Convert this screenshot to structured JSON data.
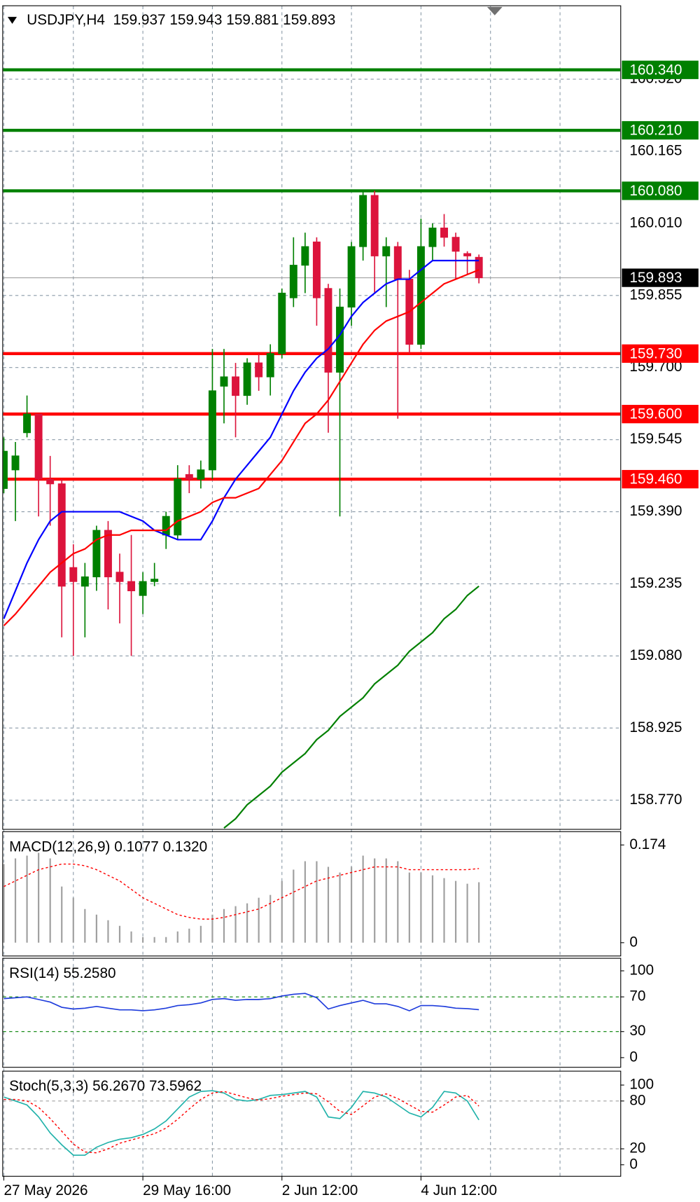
{
  "chart_data": [
    {
      "type": "candlestick",
      "title": "USDJPY,H4  159.937 159.943 159.881 159.893",
      "categories": [
        "27 May 2026",
        null,
        null,
        null,
        null,
        null,
        null,
        null,
        null,
        null,
        null,
        null,
        "29 May 16:00",
        null,
        null,
        null,
        null,
        null,
        null,
        null,
        null,
        null,
        null,
        null,
        "2 Jun 12:00",
        null,
        null,
        null,
        null,
        null,
        null,
        null,
        null,
        null,
        null,
        null,
        "4 Jun 12:00",
        null,
        null,
        null,
        null,
        null
      ],
      "open": [
        159.44,
        159.48,
        159.56,
        159.6,
        159.46,
        159.45,
        159.27,
        159.23,
        159.25,
        159.35,
        159.26,
        159.24,
        159.21,
        159.24,
        159.34,
        159.34,
        159.47,
        159.46,
        159.48,
        159.66,
        159.68,
        159.64,
        159.71,
        159.68,
        159.73,
        159.85,
        159.92,
        159.97,
        159.87,
        159.69,
        159.83,
        159.96,
        160.07,
        159.94,
        159.96,
        159.89,
        159.75,
        159.96,
        160.0,
        159.98,
        159.945,
        159.937
      ],
      "high": [
        159.55,
        159.54,
        159.64,
        159.6,
        159.51,
        159.46,
        159.32,
        159.28,
        159.36,
        159.37,
        159.3,
        159.34,
        159.26,
        159.28,
        159.39,
        159.49,
        159.49,
        159.5,
        159.74,
        159.74,
        159.71,
        159.72,
        159.73,
        159.75,
        159.87,
        159.98,
        159.99,
        159.98,
        159.88,
        159.87,
        159.97,
        160.08,
        160.08,
        159.98,
        159.97,
        159.91,
        160.02,
        160.01,
        160.03,
        159.99,
        159.95,
        159.943
      ],
      "low": [
        159.43,
        159.37,
        159.55,
        159.38,
        159.36,
        159.12,
        159.08,
        159.12,
        159.22,
        159.18,
        159.15,
        159.08,
        159.17,
        159.23,
        159.31,
        159.33,
        159.43,
        159.44,
        159.46,
        159.58,
        159.55,
        159.62,
        159.65,
        159.64,
        159.72,
        159.83,
        159.86,
        159.79,
        159.56,
        159.38,
        159.79,
        159.93,
        159.86,
        159.83,
        159.59,
        159.73,
        159.74,
        159.93,
        159.96,
        159.89,
        159.9,
        159.881
      ],
      "close": [
        159.52,
        159.51,
        159.6,
        159.46,
        159.45,
        159.23,
        159.24,
        159.25,
        159.35,
        159.25,
        159.24,
        159.22,
        159.24,
        159.245,
        159.38,
        159.46,
        159.46,
        159.48,
        159.65,
        159.68,
        159.64,
        159.71,
        159.68,
        159.73,
        159.86,
        159.92,
        159.96,
        159.85,
        159.69,
        159.83,
        159.96,
        160.07,
        159.94,
        159.96,
        159.89,
        159.75,
        159.96,
        160.0,
        159.98,
        159.95,
        159.94,
        159.893
      ],
      "up_color": "#008000",
      "down_color": "#dc143c",
      "lines": [
        {
          "color": "#0000ff",
          "values": [
            159.16,
            159.22,
            159.28,
            159.33,
            159.37,
            159.39,
            159.39,
            159.39,
            159.39,
            159.39,
            159.39,
            159.38,
            159.37,
            159.35,
            159.34,
            159.33,
            159.33,
            159.33,
            159.37,
            159.42,
            159.46,
            159.49,
            159.52,
            159.55,
            159.6,
            159.65,
            159.69,
            159.72,
            159.74,
            159.77,
            159.81,
            159.84,
            159.86,
            159.88,
            159.89,
            159.89,
            159.91,
            159.93,
            159.93,
            159.93,
            159.93,
            159.93
          ]
        },
        {
          "color": "#ff0000",
          "values": [
            159.145,
            159.17,
            159.2,
            159.23,
            159.26,
            159.28,
            159.3,
            159.31,
            159.33,
            159.34,
            159.34,
            159.35,
            159.35,
            159.35,
            159.35,
            159.37,
            159.38,
            159.39,
            159.41,
            159.42,
            159.42,
            159.43,
            159.44,
            159.47,
            159.5,
            159.54,
            159.58,
            159.6,
            159.63,
            159.67,
            159.71,
            159.75,
            159.78,
            159.8,
            159.81,
            159.82,
            159.84,
            159.86,
            159.88,
            159.89,
            159.9,
            159.91
          ]
        },
        {
          "color": "#008000",
          "values": [
            null,
            null,
            null,
            null,
            null,
            null,
            null,
            null,
            null,
            null,
            null,
            null,
            null,
            null,
            null,
            null,
            null,
            null,
            null,
            158.71,
            158.73,
            158.76,
            158.78,
            158.8,
            158.83,
            158.85,
            158.87,
            158.9,
            158.92,
            158.95,
            158.97,
            158.99,
            159.02,
            159.04,
            159.06,
            159.09,
            159.11,
            159.13,
            159.16,
            159.18,
            159.21,
            159.23
          ]
        }
      ],
      "levels": [
        {
          "value": 160.34,
          "label": "160.340",
          "color": "#008000"
        },
        {
          "value": 160.21,
          "label": "160.210",
          "color": "#008000"
        },
        {
          "value": 160.08,
          "label": "160.080",
          "color": "#008000"
        },
        {
          "value": 159.73,
          "label": "159.730",
          "color": "#ff0000"
        },
        {
          "value": 159.6,
          "label": "159.600",
          "color": "#ff0000"
        },
        {
          "value": 159.46,
          "label": "159.460",
          "color": "#ff0000"
        }
      ],
      "current_price": {
        "value": 159.893,
        "label": "159.893"
      },
      "ylim": [
        158.708,
        160.477
      ],
      "yticks": [
        {
          "value": 160.32,
          "label": "160.320"
        },
        160.165,
        {
          "value": 160.01,
          "label": "160.010"
        },
        159.855,
        {
          "value": 159.7,
          "label": "159.700"
        },
        159.545,
        {
          "value": 159.39,
          "label": "159.390"
        },
        159.235,
        {
          "value": 159.08,
          "label": "159.080"
        },
        158.925,
        {
          "value": 158.77,
          "label": "158.770"
        }
      ],
      "grid": true
    },
    {
      "type": "macd",
      "title": "MACD(12,26,9) 0.1077 0.1320",
      "histogram": [
        0.14,
        0.15,
        0.155,
        0.16,
        0.15,
        0.1,
        0.08,
        0.06,
        0.05,
        0.04,
        0.03,
        0.02,
        0.01,
        0.01,
        0.01,
        0.02,
        0.025,
        0.03,
        0.05,
        0.06,
        0.065,
        0.07,
        0.08,
        0.085,
        0.11,
        0.13,
        0.145,
        0.145,
        0.135,
        0.125,
        0.135,
        0.155,
        0.15,
        0.15,
        0.145,
        0.125,
        0.125,
        0.12,
        0.115,
        0.11,
        0.105,
        0.1077
      ],
      "signal": [
        0.1,
        0.11,
        0.12,
        0.13,
        0.135,
        0.14,
        0.14,
        0.137,
        0.13,
        0.12,
        0.11,
        0.095,
        0.08,
        0.07,
        0.06,
        0.05,
        0.045,
        0.042,
        0.042,
        0.045,
        0.05,
        0.055,
        0.06,
        0.07,
        0.08,
        0.09,
        0.1,
        0.11,
        0.115,
        0.12,
        0.125,
        0.13,
        0.135,
        0.135,
        0.135,
        0.13,
        0.13,
        0.13,
        0.13,
        0.13,
        0.13,
        0.132
      ],
      "histogram_color": "#a0a0a0",
      "signal_color": "#ff0000",
      "ylim": [
        -0.023,
        0.197
      ],
      "yticks": [
        0.174,
        0
      ]
    },
    {
      "type": "rsi",
      "title": "RSI(14) 55.2580",
      "values": [
        68,
        69,
        70,
        67,
        64,
        58,
        56,
        57,
        59,
        57,
        55,
        55,
        54,
        55,
        57,
        60,
        61,
        63,
        67,
        68,
        66,
        67,
        67,
        68,
        71,
        73,
        74,
        69,
        56,
        60,
        63,
        66,
        62,
        62,
        59,
        54,
        60,
        60,
        59,
        57,
        56.5,
        55.258
      ],
      "color": "#1e3cdc",
      "levels": [
        70,
        30
      ],
      "level_color": "#008000",
      "ylim": [
        -10.7,
        114
      ],
      "yticks": [
        100,
        70,
        30,
        0
      ]
    },
    {
      "type": "stochastic",
      "title": "Stoch(5,3,3) 56.2670 73.5962",
      "main": [
        85,
        80,
        75,
        60,
        40,
        25,
        12,
        12,
        22,
        28,
        32,
        34,
        38,
        45,
        55,
        70,
        85,
        92,
        93,
        90,
        82,
        80,
        82,
        87,
        88,
        90,
        92,
        85,
        60,
        58,
        72,
        92,
        90,
        85,
        75,
        65,
        60,
        72,
        92,
        90,
        80,
        56.267
      ],
      "signal": [
        82,
        82,
        80,
        72,
        58,
        42,
        26,
        16,
        15,
        20,
        27,
        31,
        35,
        39,
        46,
        57,
        70,
        82,
        90,
        92,
        88,
        84,
        81,
        83,
        86,
        88,
        90,
        89,
        79,
        67,
        63,
        74,
        85,
        89,
        83,
        75,
        67,
        66,
        75,
        85,
        87,
        73.596
      ],
      "main_color": "#20b2aa",
      "signal_color": "#ff0000",
      "levels": [
        80,
        20
      ],
      "level_color": "#a0a0a0",
      "ylim": [
        -14,
        117
      ],
      "yticks": [
        100,
        80,
        20,
        0
      ]
    }
  ]
}
